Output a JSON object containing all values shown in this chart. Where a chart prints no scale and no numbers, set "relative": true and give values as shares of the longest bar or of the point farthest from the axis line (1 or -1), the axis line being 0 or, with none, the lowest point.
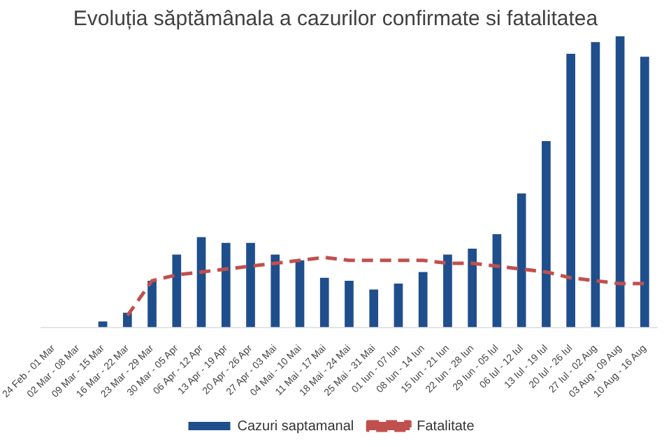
{
  "chart_data": {
    "type": "bar",
    "title": "Evoluția săptămânala a cazurilor confirmate si fatalitatea",
    "relative": true,
    "legend": "bottom",
    "grid": false,
    "categories": [
      "24 Feb - 01 Mar",
      "02 Mar - 08 Mar",
      "09 Mar - 15 Mar",
      "16 Mar - 22 Mar",
      "23 Mar - 29 Mar",
      "30 Mar - 05 Apr",
      "06 Apr - 12 Apr",
      "13 Apr - 19 Apr",
      "20 Apr - 26 Apr",
      "27 Apr - 03 Mai",
      "04 Mai - 10 Mai",
      "11 Mai - 17 Mai",
      "18 Mai - 24 Mai",
      "25 Mai - 31 Mai",
      "01 Iun - 07 Iun",
      "08 Iun - 14 Iun",
      "15 Iun - 21 Iun",
      "22 Iun - 28 Iun",
      "29 Iun - 05 Iul",
      "06 Iul - 12 Iul",
      "13 Iul - 19 Iul",
      "20 Iul - 26 Iul",
      "27 Iul - 02 Aug",
      "03 Aug - 09 Aug",
      "10 Aug - 16 Aug"
    ],
    "series": [
      {
        "name": "Cazuri saptamanal",
        "color": "#1f4e8c",
        "values": [
          0,
          0,
          0.02,
          0.05,
          0.16,
          0.25,
          0.31,
          0.29,
          0.29,
          0.25,
          0.23,
          0.17,
          0.16,
          0.13,
          0.15,
          0.19,
          0.25,
          0.27,
          0.32,
          0.46,
          0.64,
          0.94,
          0.98,
          1,
          0.93
        ]
      },
      {
        "name": "Fatalitate",
        "type": "line",
        "color": "#c0504d",
        "line_style": "dashed",
        "marker": "none",
        "values": [
          null,
          null,
          null,
          0.04,
          0.16,
          0.18,
          0.19,
          0.2,
          0.21,
          0.22,
          0.23,
          0.24,
          0.23,
          0.23,
          0.23,
          0.23,
          0.22,
          0.22,
          0.21,
          0.2,
          0.19,
          0.17,
          0.16,
          0.15,
          0.15
        ]
      }
    ]
  }
}
